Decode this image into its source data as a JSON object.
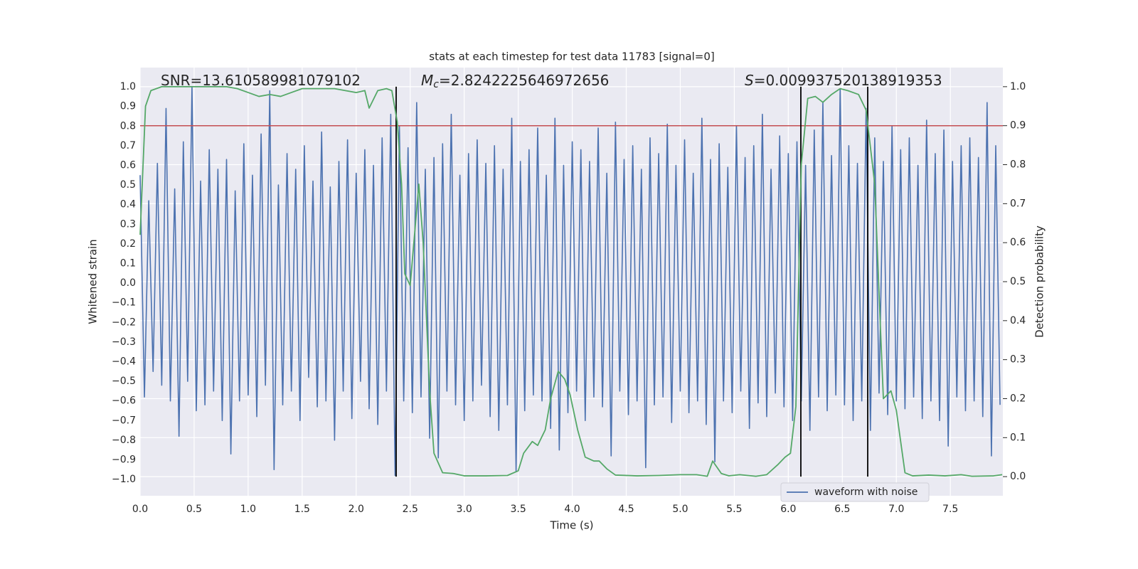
{
  "chart_data": {
    "type": "line",
    "title": "stats at each timestep for test data 11783 [signal=0]",
    "xlabel": "Time (s)",
    "ylabel": "Whitened strain",
    "y2label": "Detection probability",
    "xlim": [
      0,
      7.986
    ],
    "ylim": [
      -1.083,
      1.098
    ],
    "y2lim": [
      -0.049,
      1.049
    ],
    "grid": true,
    "legend": "lower right",
    "xticks": [
      {
        "value": 0,
        "label": "0.0"
      },
      {
        "value": 0.5,
        "label": "0.5"
      },
      {
        "value": 1,
        "label": "1.0"
      },
      {
        "value": 1.5,
        "label": "1.5"
      },
      {
        "value": 2,
        "label": "2.0"
      },
      {
        "value": 2.5,
        "label": "2.5"
      },
      {
        "value": 3,
        "label": "3.0"
      },
      {
        "value": 3.5,
        "label": "3.5"
      },
      {
        "value": 4,
        "label": "4.0"
      },
      {
        "value": 4.5,
        "label": "4.5"
      },
      {
        "value": 5,
        "label": "5.0"
      },
      {
        "value": 5.5,
        "label": "5.5"
      },
      {
        "value": 6,
        "label": "6.0"
      },
      {
        "value": 6.5,
        "label": "6.5"
      },
      {
        "value": 7,
        "label": "7.0"
      },
      {
        "value": 7.5,
        "label": "7.5"
      }
    ],
    "yticks": [
      {
        "value": 1,
        "label": "1.0"
      },
      {
        "value": 0.9,
        "label": "0.9"
      },
      {
        "value": 0.8,
        "label": "0.8"
      },
      {
        "value": 0.7,
        "label": "0.7"
      },
      {
        "value": 0.6,
        "label": "0.6"
      },
      {
        "value": 0.5,
        "label": "0.5"
      },
      {
        "value": 0.4,
        "label": "0.4"
      },
      {
        "value": 0.3,
        "label": "0.3"
      },
      {
        "value": 0.2,
        "label": "0.2"
      },
      {
        "value": 0.1,
        "label": "0.1"
      },
      {
        "value": 0,
        "label": "0.0"
      },
      {
        "value": -0.1,
        "label": "−0.1"
      },
      {
        "value": -0.2,
        "label": "−0.2"
      },
      {
        "value": -0.3,
        "label": "−0.3"
      },
      {
        "value": -0.4,
        "label": "−0.4"
      },
      {
        "value": -0.5,
        "label": "−0.5"
      },
      {
        "value": -0.6,
        "label": "−0.6"
      },
      {
        "value": -0.7,
        "label": "−0.7"
      },
      {
        "value": -0.8,
        "label": "−0.8"
      },
      {
        "value": -0.9,
        "label": "−0.9"
      },
      {
        "value": -1,
        "label": "−1.0"
      }
    ],
    "y2ticks": [
      {
        "value": 0,
        "label": "0.0"
      },
      {
        "value": 0.1,
        "label": "0.1"
      },
      {
        "value": 0.2,
        "label": "0.2"
      },
      {
        "value": 0.3,
        "label": "0.3"
      },
      {
        "value": 0.4,
        "label": "0.4"
      },
      {
        "value": 0.5,
        "label": "0.5"
      },
      {
        "value": 0.6,
        "label": "0.6"
      },
      {
        "value": 0.7,
        "label": "0.7"
      },
      {
        "value": 0.8,
        "label": "0.8"
      },
      {
        "value": 0.9,
        "label": "0.9"
      },
      {
        "value": 1,
        "label": "1.0"
      }
    ],
    "series": [
      {
        "name": "waveform with noise",
        "color": "#4c72b0",
        "x": [
          0,
          0.04,
          0.08,
          0.12,
          0.16,
          0.2,
          0.24,
          0.28,
          0.32,
          0.36,
          0.4,
          0.44,
          0.48,
          0.52,
          0.56,
          0.6,
          0.64,
          0.68,
          0.72,
          0.76,
          0.8,
          0.84,
          0.88,
          0.92,
          0.96,
          1,
          1.04,
          1.08,
          1.12,
          1.16,
          1.2,
          1.24,
          1.28,
          1.32,
          1.36,
          1.4,
          1.44,
          1.48,
          1.52,
          1.56,
          1.6,
          1.64,
          1.68,
          1.72,
          1.76,
          1.8,
          1.84,
          1.88,
          1.92,
          1.96,
          2,
          2.04,
          2.08,
          2.12,
          2.16,
          2.2,
          2.24,
          2.28,
          2.32,
          2.36,
          2.4,
          2.44,
          2.48,
          2.52,
          2.56,
          2.6,
          2.64,
          2.68,
          2.72,
          2.76,
          2.8,
          2.84,
          2.88,
          2.92,
          2.96,
          3,
          3.04,
          3.08,
          3.12,
          3.16,
          3.2,
          3.24,
          3.28,
          3.32,
          3.36,
          3.4,
          3.44,
          3.48,
          3.52,
          3.56,
          3.6,
          3.64,
          3.68,
          3.72,
          3.76,
          3.8,
          3.84,
          3.88,
          3.92,
          3.96,
          4,
          4.04,
          4.08,
          4.12,
          4.16,
          4.2,
          4.24,
          4.28,
          4.32,
          4.36,
          4.4,
          4.44,
          4.48,
          4.52,
          4.56,
          4.6,
          4.64,
          4.68,
          4.72,
          4.76,
          4.8,
          4.84,
          4.88,
          4.92,
          4.96,
          5,
          5.04,
          5.08,
          5.12,
          5.16,
          5.2,
          5.24,
          5.28,
          5.32,
          5.36,
          5.4,
          5.44,
          5.48,
          5.52,
          5.56,
          5.6,
          5.64,
          5.68,
          5.72,
          5.76,
          5.8,
          5.84,
          5.88,
          5.92,
          5.96,
          6,
          6.04,
          6.08,
          6.12,
          6.16,
          6.2,
          6.24,
          6.28,
          6.32,
          6.36,
          6.4,
          6.44,
          6.48,
          6.52,
          6.56,
          6.6,
          6.64,
          6.68,
          6.72,
          6.76,
          6.8,
          6.84,
          6.88,
          6.92,
          6.96,
          7,
          7.04,
          7.08,
          7.12,
          7.16,
          7.2,
          7.24,
          7.28,
          7.32,
          7.36,
          7.4,
          7.44,
          7.48,
          7.52,
          7.56,
          7.6,
          7.64,
          7.68,
          7.72,
          7.76,
          7.8,
          7.84,
          7.88,
          7.92,
          7.96
        ],
        "values": [
          0.55,
          -0.58,
          0.42,
          -0.45,
          0.61,
          -0.52,
          0.89,
          -0.6,
          0.48,
          -0.78,
          0.72,
          -0.5,
          1.0,
          -0.65,
          0.52,
          -0.62,
          0.68,
          -0.55,
          0.58,
          -0.7,
          0.63,
          -0.87,
          0.47,
          -0.6,
          0.71,
          -0.57,
          0.55,
          -0.68,
          0.76,
          -0.52,
          0.98,
          -0.95,
          0.5,
          -0.62,
          0.66,
          -0.55,
          0.58,
          -0.7,
          0.7,
          -0.48,
          0.52,
          -0.63,
          0.77,
          -0.6,
          0.49,
          -0.8,
          0.62,
          -0.55,
          0.73,
          -0.69,
          0.56,
          -0.5,
          0.68,
          -0.64,
          0.6,
          -0.72,
          0.74,
          -0.55,
          0.86,
          -0.98,
          0.8,
          -0.6,
          0.69,
          -0.66,
          0.92,
          -0.58,
          0.58,
          -0.79,
          0.64,
          -0.89,
          0.71,
          -0.55,
          0.86,
          -0.62,
          0.55,
          -0.7,
          0.66,
          -0.6,
          0.73,
          -0.52,
          0.61,
          -0.68,
          0.7,
          -0.75,
          0.58,
          -0.62,
          0.84,
          -0.96,
          0.62,
          -0.65,
          0.68,
          -0.57,
          0.79,
          -0.6,
          0.55,
          -0.74,
          0.84,
          -0.85,
          0.6,
          -0.66,
          0.72,
          -0.55,
          0.68,
          -0.7,
          0.62,
          -0.58,
          0.79,
          -0.63,
          0.56,
          -0.88,
          0.82,
          -0.55,
          0.63,
          -0.67,
          0.7,
          -0.6,
          0.58,
          -0.94,
          0.74,
          -0.62,
          0.66,
          -0.58,
          0.81,
          -0.71,
          0.6,
          -0.55,
          0.73,
          -0.66,
          0.56,
          -0.6,
          0.84,
          -0.72,
          0.63,
          -0.91,
          0.71,
          -0.6,
          0.59,
          -0.66,
          0.8,
          -0.55,
          0.64,
          -0.74,
          0.7,
          -0.61,
          0.86,
          -0.68,
          0.58,
          -0.56,
          0.75,
          -0.63,
          0.66,
          -0.7,
          0.72,
          -0.6,
          0.6,
          -0.75,
          0.78,
          -0.58,
          0.92,
          -0.65,
          0.65,
          -0.57,
          0.99,
          -0.62,
          0.7,
          -0.7,
          0.61,
          -0.6,
          0.89,
          -0.75,
          0.74,
          -0.56,
          0.62,
          -0.67,
          0.8,
          -0.6,
          0.68,
          -0.64,
          0.74,
          -0.58,
          0.6,
          -0.69,
          0.83,
          -0.6,
          0.66,
          -0.7,
          0.78,
          -0.83,
          0.62,
          -0.58,
          0.7,
          -0.65,
          0.74,
          -0.6,
          0.64,
          -0.68,
          0.92,
          -0.88,
          0.7,
          -0.62
        ]
      },
      {
        "color": "#55a868",
        "axis": "y2",
        "x": [
          0,
          0.05,
          0.1,
          0.2,
          0.5,
          0.8,
          0.9,
          1,
          1.1,
          1.2,
          1.3,
          1.4,
          1.5,
          1.6,
          1.8,
          1.9,
          2,
          2.08,
          2.12,
          2.2,
          2.28,
          2.33,
          2.38,
          2.42,
          2.45,
          2.5,
          2.58,
          2.62,
          2.68,
          2.72,
          2.8,
          2.9,
          3,
          3.2,
          3.4,
          3.5,
          3.55,
          3.63,
          3.68,
          3.75,
          3.8,
          3.87,
          3.93,
          3.98,
          4.05,
          4.12,
          4.2,
          4.25,
          4.32,
          4.4,
          4.6,
          4.8,
          5,
          5.15,
          5.25,
          5.3,
          5.38,
          5.45,
          5.55,
          5.7,
          5.8,
          5.9,
          5.97,
          6.02,
          6.07,
          6.12,
          6.18,
          6.25,
          6.32,
          6.4,
          6.48,
          6.55,
          6.65,
          6.72,
          6.8,
          6.85,
          6.88,
          6.95,
          7,
          7.08,
          7.15,
          7.3,
          7.45,
          7.6,
          7.7,
          7.9,
          7.98
        ],
        "values": [
          0.62,
          0.95,
          0.99,
          1.0,
          1.0,
          1.0,
          0.995,
          0.985,
          0.975,
          0.98,
          0.975,
          0.985,
          0.995,
          0.995,
          0.995,
          0.99,
          0.985,
          0.99,
          0.945,
          0.99,
          0.995,
          0.99,
          0.91,
          0.75,
          0.52,
          0.49,
          0.75,
          0.6,
          0.22,
          0.06,
          0.01,
          0.008,
          0.002,
          0.002,
          0.003,
          0.015,
          0.06,
          0.09,
          0.08,
          0.12,
          0.2,
          0.27,
          0.25,
          0.21,
          0.12,
          0.05,
          0.04,
          0.04,
          0.02,
          0.004,
          0.002,
          0.003,
          0.005,
          0.005,
          0.001,
          0.04,
          0.008,
          0.002,
          0.005,
          0.001,
          0.005,
          0.03,
          0.05,
          0.06,
          0.18,
          0.8,
          0.97,
          0.975,
          0.96,
          0.98,
          0.995,
          0.99,
          0.98,
          0.94,
          0.75,
          0.4,
          0.2,
          0.22,
          0.17,
          0.01,
          0.002,
          0.004,
          0.002,
          0.005,
          0.001,
          0.002,
          0.005
        ]
      }
    ],
    "hlines": [
      {
        "value": 0.9,
        "axis": "y2",
        "color": "#c44e52"
      }
    ],
    "vlines": {
      "x": [
        2.37,
        6.116,
        6.735
      ],
      "axis": "y2",
      "span": [
        0,
        1
      ],
      "color": "#000000"
    },
    "annotations": [
      {
        "text": "SNR=13.610589981079102"
      },
      {
        "symbol": "M",
        "subscript": "c",
        "text": "=2.8242225646972656"
      },
      {
        "symbol": "S",
        "text": "=0.009937520138919353"
      }
    ]
  }
}
